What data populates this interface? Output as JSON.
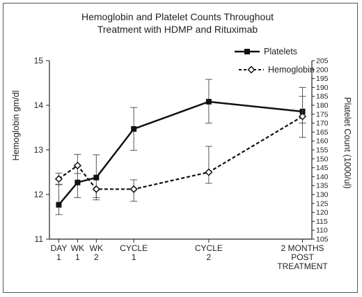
{
  "chart_data": {
    "type": "line",
    "title_lines": [
      "Hemoglobin and Platelet Counts Throughout",
      "Treatment with HDMP and Rituximab"
    ],
    "ylabel_left": "Hemoglobin gm/dl",
    "ylabel_right": "Platelet Count (1000/ul)",
    "left_ylim": [
      11,
      15
    ],
    "left_ticks": [
      "11",
      "12",
      "13",
      "14",
      "15"
    ],
    "right_ylim": [
      105,
      205
    ],
    "right_ticks": [
      "105",
      "110",
      "115",
      "120",
      "125",
      "130",
      "135",
      "140",
      "145",
      "150",
      "155",
      "160",
      "165",
      "170",
      "175",
      "180",
      "185",
      "190",
      "195",
      "200",
      "205"
    ],
    "categories": [
      [
        "DAY",
        "1"
      ],
      [
        "WK",
        "1"
      ],
      [
        "WK",
        "2"
      ],
      [
        "CYCLE",
        "1"
      ],
      [
        "CYCLE",
        "2"
      ],
      [
        "2 MONTHS",
        "POST",
        "TREATMENT"
      ]
    ],
    "x": [
      1,
      2,
      3,
      5,
      9,
      14
    ],
    "xlim": [
      0.5,
      14.5
    ],
    "legend_position": "top-right",
    "series": [
      {
        "name": "Platelets",
        "axis": "left",
        "style": "solid",
        "marker": "filled-square",
        "color": "#111111",
        "values": [
          11.77,
          12.27,
          12.38,
          13.47,
          14.08,
          13.86
        ],
        "error_low": [
          11.55,
          11.93,
          11.88,
          12.99,
          13.6,
          13.28
        ],
        "error_high": [
          12.22,
          12.63,
          12.89,
          13.95,
          14.58,
          14.4
        ]
      },
      {
        "name": "Hemoglobin",
        "axis": "left",
        "style": "dashed",
        "marker": "open-diamond",
        "color": "#111111",
        "values": [
          12.35,
          12.65,
          12.12,
          12.12,
          12.5,
          13.75
        ],
        "error_low": [
          12.23,
          12.47,
          11.93,
          11.85,
          12.25,
          13.6
        ],
        "error_high": [
          12.48,
          12.9,
          12.13,
          12.33,
          13.08,
          14.2
        ]
      }
    ]
  }
}
